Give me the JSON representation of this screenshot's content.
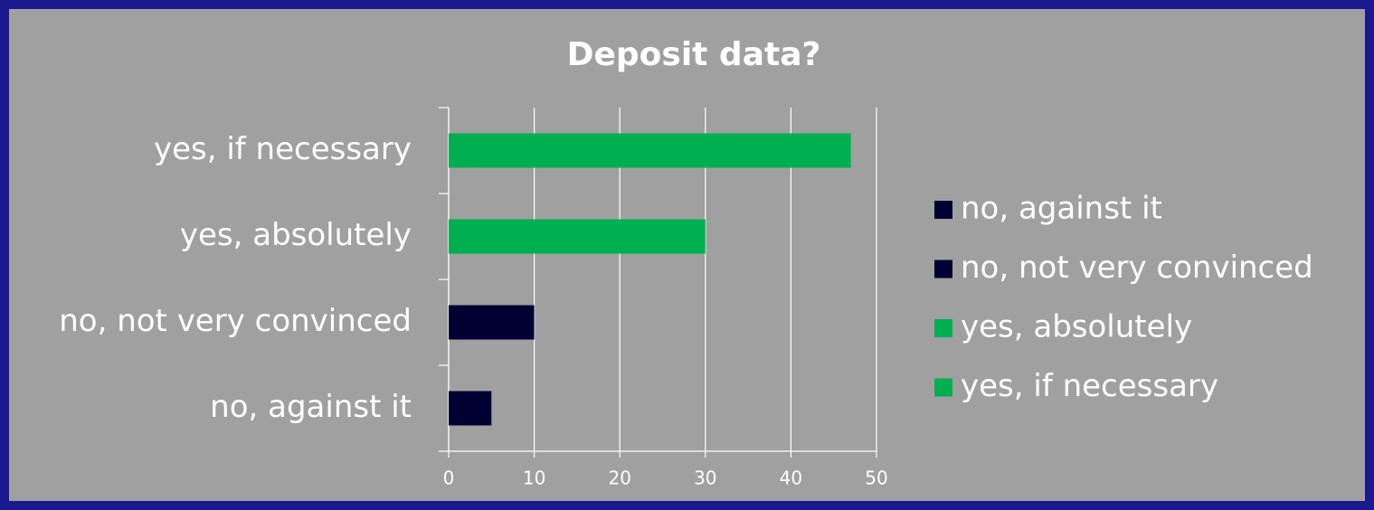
{
  "chart_data": {
    "type": "hbar",
    "title": "Deposit data?",
    "categories": [
      "no, against it",
      "no, not very convinced",
      "yes, absolutely",
      "yes, if necessary"
    ],
    "values": [
      5,
      10,
      30,
      47
    ],
    "colors": [
      "#000033",
      "#000033",
      "#00b050",
      "#00b050"
    ],
    "xlim": [
      0,
      50
    ],
    "xticks": [
      0,
      10,
      20,
      30,
      40,
      50
    ],
    "grid": true,
    "legend": "right"
  }
}
